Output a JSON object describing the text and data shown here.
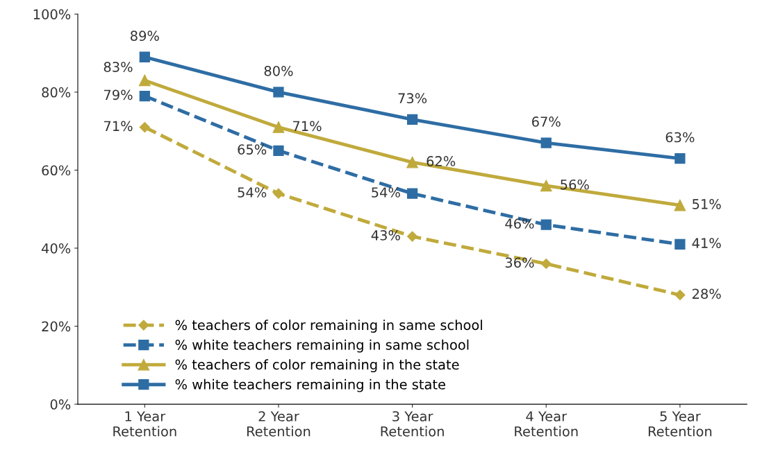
{
  "chart_data": {
    "type": "line",
    "categories": [
      "1 Year\nRetention",
      "2 Year\nRetention",
      "3 Year\nRetention",
      "4 Year\nRetention",
      "5 Year\nRetention"
    ],
    "ylim": [
      0,
      100
    ],
    "yticks": [
      {
        "value": 0,
        "label": "0%"
      },
      {
        "value": 20,
        "label": "20%"
      },
      {
        "value": 40,
        "label": "40%"
      },
      {
        "value": 60,
        "label": "60%"
      },
      {
        "value": 80,
        "label": "80%"
      },
      {
        "value": 100,
        "label": "100%"
      }
    ],
    "grid": false,
    "legend": "bottom left",
    "series": [
      {
        "name": "% teachers of color remaining in same school",
        "color": "#c0aa3c",
        "marker": "diamond",
        "line_style": "dashed",
        "values": [
          71,
          54,
          43,
          36,
          28
        ],
        "value_labels": [
          "71%",
          "54%",
          "43%",
          "36%",
          "28%"
        ]
      },
      {
        "name": "% white teachers remaining in same school",
        "color": "#2e6da4",
        "marker": "square",
        "line_style": "dashed",
        "values": [
          79,
          65,
          54,
          46,
          41
        ],
        "value_labels": [
          "79%",
          "65%",
          "54%",
          "46%",
          "41%"
        ]
      },
      {
        "name": "% teachers of color remaining in the state",
        "color": "#c0aa3c",
        "marker": "triangle",
        "line_style": "solid",
        "values": [
          83,
          71,
          62,
          56,
          51
        ],
        "value_labels": [
          "83%",
          "71%",
          "62%",
          "56%",
          "51%"
        ]
      },
      {
        "name": "% white teachers remaining in the state",
        "color": "#2e6da4",
        "marker": "square",
        "line_style": "solid",
        "values": [
          89,
          80,
          73,
          67,
          63
        ],
        "value_labels": [
          "89%",
          "80%",
          "73%",
          "67%",
          "63%"
        ]
      }
    ]
  }
}
